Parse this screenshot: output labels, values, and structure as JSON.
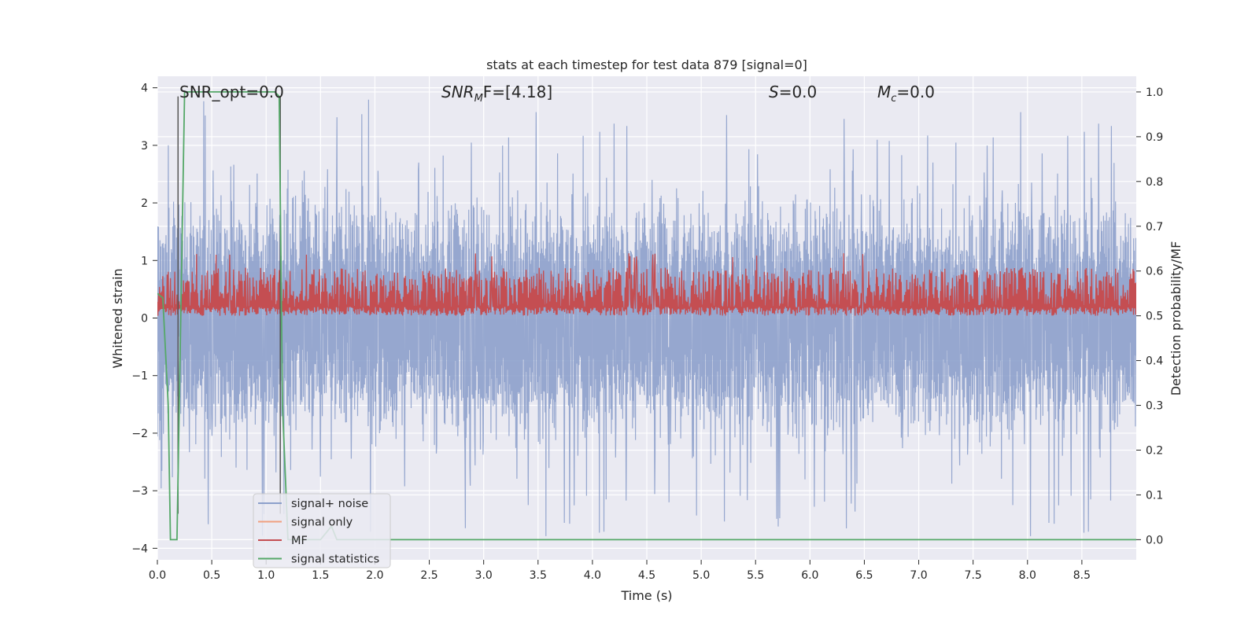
{
  "chart_data": {
    "type": "line",
    "title": "stats at each timestep for test data 879 [signal=0]",
    "xlabel": "Time (s)",
    "ylabel_left": "Whitened strain",
    "ylabel_right": "Detection probability/MF",
    "xlim": [
      0.0,
      9.0
    ],
    "ylim_left": [
      -4.2,
      4.2
    ],
    "ylim_right": [
      -0.045,
      1.035
    ],
    "xticks": [
      "0.0",
      "0.5",
      "1.0",
      "1.5",
      "2.0",
      "2.5",
      "3.0",
      "3.5",
      "4.0",
      "4.5",
      "5.0",
      "5.5",
      "6.0",
      "6.5",
      "7.0",
      "7.5",
      "8.0",
      "8.5"
    ],
    "yticks_left": [
      "4",
      "3",
      "2",
      "1",
      "0",
      "−1",
      "−2",
      "−3",
      "−4"
    ],
    "yticks_right": [
      "1.0",
      "0.9",
      "0.8",
      "0.7",
      "0.6",
      "0.5",
      "0.4",
      "0.3",
      "0.2",
      "0.1",
      "0.0"
    ],
    "grid": true,
    "legend_position": "lower-left",
    "annotations": {
      "snr_opt": "SNR_opt=0.0",
      "snr_mf_base": "SNR",
      "snr_mf_sub": "M",
      "snr_mf_rest": "F=[4.18]",
      "s_label": "S",
      "s_value": "=0.0",
      "mc_base": "M",
      "mc_sub": "c",
      "mc_value": "=0.0"
    },
    "series": [
      {
        "name": "signal+ noise",
        "axis": "left",
        "color": "#8da0cb",
        "description_values": {
          "typical_range": [
            -1.6,
            1.6
          ],
          "peak_range": [
            -3.9,
            3.9
          ]
        }
      },
      {
        "name": "signal only",
        "axis": "left",
        "color": "#f0a080",
        "values": []
      },
      {
        "name": "MF",
        "axis": "right",
        "color": "#c44e52",
        "description_values": {
          "typical_range": [
            0.5,
            0.62
          ],
          "peak_max": 0.64
        }
      },
      {
        "name": "signal statistics",
        "axis": "right",
        "color": "#55a868",
        "x": [
          0.0,
          0.05,
          0.1,
          0.12,
          0.18,
          0.25,
          1.08,
          1.12,
          1.15,
          1.2,
          1.5,
          1.6,
          1.65,
          1.7,
          9.0
        ],
        "y": [
          0.55,
          0.54,
          0.3,
          0.0,
          0.0,
          1.0,
          1.0,
          0.99,
          0.3,
          0.0,
          0.0,
          0.03,
          0.0,
          0.0,
          0.0
        ]
      }
    ],
    "vertical_markers": {
      "color": "#555555",
      "x": [
        0.19,
        1.13
      ]
    }
  }
}
